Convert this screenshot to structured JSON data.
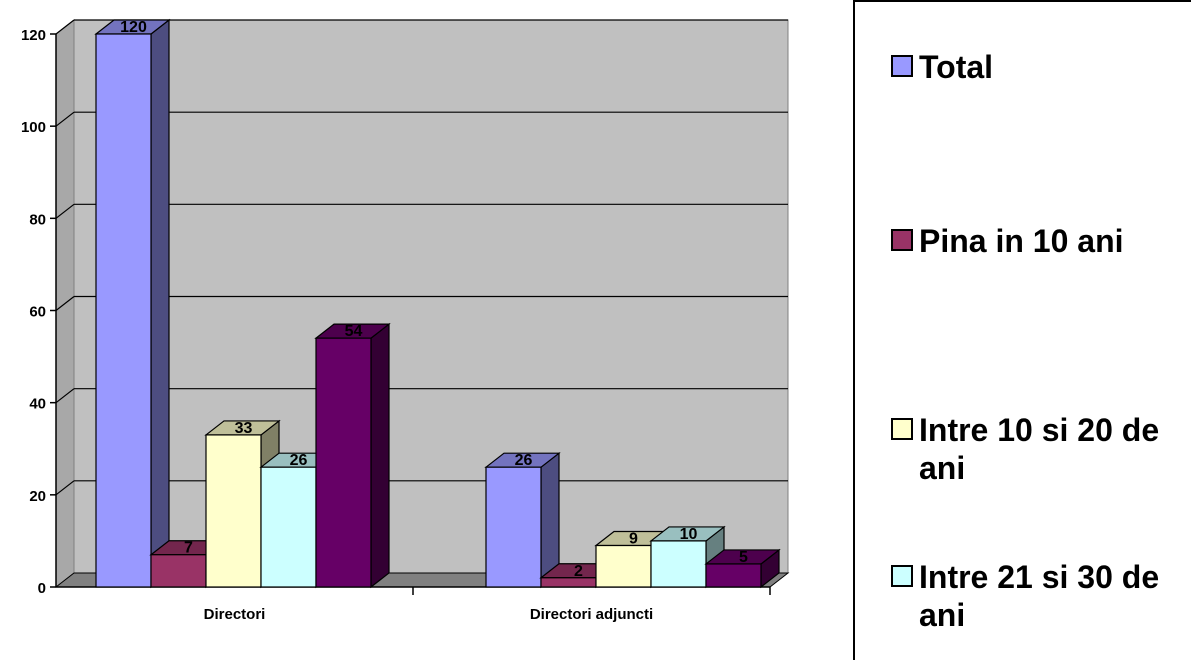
{
  "chart_data": {
    "type": "bar",
    "categories": [
      "Directori",
      "Directori adjuncti"
    ],
    "series": [
      {
        "name": "Total",
        "values": [
          120,
          26
        ],
        "color": "#9999FF"
      },
      {
        "name": "Pina in 10 ani",
        "values": [
          7,
          2
        ],
        "color": "#993366"
      },
      {
        "name": "Intre 10 si 20 de ani",
        "values": [
          33,
          9
        ],
        "color": "#FFFFCC"
      },
      {
        "name": "Intre 21 si 30 de ani",
        "values": [
          26,
          10
        ],
        "color": "#CCFFFF"
      },
      {
        "name": "",
        "values": [
          54,
          5
        ],
        "color": "#660066"
      }
    ],
    "ylim": [
      0,
      120
    ],
    "yticks": [
      "0",
      "20",
      "40",
      "60",
      "80",
      "100",
      "120"
    ],
    "grid": true,
    "legend_position": "right",
    "plot_background": "#C0C0C0"
  }
}
